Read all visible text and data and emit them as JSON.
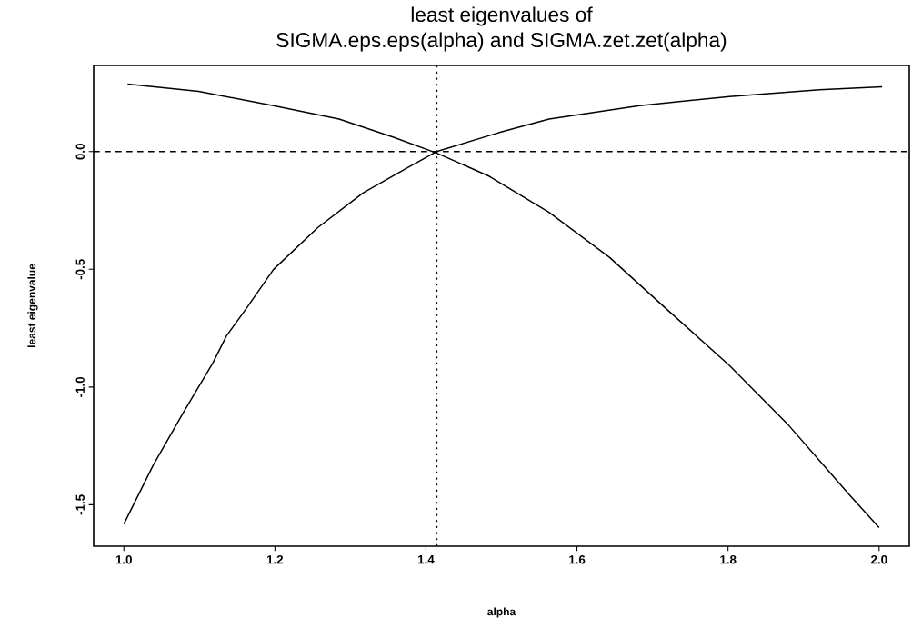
{
  "chart_data": {
    "type": "line",
    "title": "least eigenvalues of",
    "subtitle": "SIGMA.eps.eps(alpha) and SIGMA.zet.zet(alpha)",
    "xlabel": "alpha",
    "ylabel": "least eigenvalue",
    "xlim": [
      0.96,
      2.04
    ],
    "ylim": [
      -1.676,
      0.366
    ],
    "xticks": [
      {
        "value": 1.0,
        "label": "1.0"
      },
      1.2,
      1.4,
      1.6,
      1.8,
      {
        "value": 2.0,
        "label": "2.0"
      }
    ],
    "yticks": [
      -1.5,
      {
        "value": -1.0,
        "label": "-1.0"
      },
      -0.5,
      {
        "value": 0.0,
        "label": "0.0"
      }
    ],
    "grid": false,
    "line_style": "solid",
    "marker": "none",
    "ref_lines": [
      {
        "axis": "y",
        "value": 0,
        "line_style": "dashed",
        "color": "#000000"
      },
      {
        "axis": "x",
        "value": 1.414,
        "line_style": "dotted",
        "color": "#000000"
      }
    ],
    "series": [
      {
        "color": "#000000",
        "x": [
          1.005,
          1.099,
          1.198,
          1.285,
          1.357,
          1.414,
          1.484,
          1.563,
          1.643,
          1.718,
          1.802,
          1.881,
          1.961,
          2.0
        ],
        "values": [
          0.287,
          0.256,
          0.195,
          0.138,
          0.061,
          -0.006,
          -0.105,
          -0.258,
          -0.449,
          -0.667,
          -0.909,
          -1.165,
          -1.459,
          -1.597
        ]
      },
      {
        "color": "#000000",
        "x": [
          1.0,
          1.039,
          1.079,
          1.118,
          1.136,
          1.162,
          1.198,
          1.257,
          1.317,
          1.377,
          1.414,
          1.496,
          1.563,
          1.683,
          1.802,
          1.921,
          2.004
        ],
        "values": [
          -1.582,
          -1.331,
          -1.107,
          -0.897,
          -0.782,
          -0.667,
          -0.501,
          -0.322,
          -0.175,
          -0.066,
          0.0,
          0.08,
          0.138,
          0.195,
          0.234,
          0.263,
          0.275
        ]
      }
    ]
  }
}
